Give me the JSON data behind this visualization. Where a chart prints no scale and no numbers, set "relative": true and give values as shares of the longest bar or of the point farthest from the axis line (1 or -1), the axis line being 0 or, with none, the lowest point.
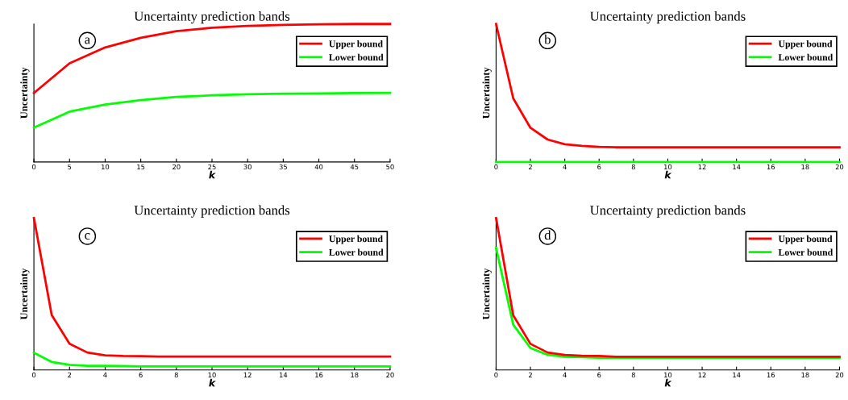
{
  "chart_data": [
    {
      "type": "line",
      "title": "Uncertainty prediction bands",
      "xlabel": "k",
      "ylabel": "Uncertainty",
      "annotations": [
        "a"
      ],
      "relative": true,
      "legend": "top right",
      "xlim": [
        0,
        50
      ],
      "xticks": [
        0,
        5,
        10,
        15,
        20,
        25,
        30,
        35,
        40,
        45,
        50
      ],
      "x": [
        0,
        5,
        10,
        15,
        20,
        25,
        30,
        35,
        40,
        45,
        50
      ],
      "series": [
        {
          "name": "Upper bound",
          "color": "#ff0000",
          "values": [
            0.5,
            0.715,
            0.83,
            0.9,
            0.948,
            0.973,
            0.986,
            0.994,
            0.998,
            1.0,
            1.0
          ]
        },
        {
          "name": "Lower bound",
          "color": "#00ff00",
          "values": [
            0.249,
            0.365,
            0.417,
            0.449,
            0.472,
            0.483,
            0.491,
            0.495,
            0.497,
            0.5,
            0.501
          ]
        }
      ]
    },
    {
      "type": "line",
      "title": "Uncertainty prediction bands",
      "xlabel": "k",
      "ylabel": "Uncertainty",
      "annotations": [
        "b"
      ],
      "relative": true,
      "legend": "top right",
      "xlim": [
        0,
        20
      ],
      "xticks": [
        0,
        2,
        4,
        6,
        8,
        10,
        12,
        14,
        16,
        18,
        20
      ],
      "x": [
        0,
        1,
        2,
        3,
        4,
        5,
        6,
        7,
        8,
        9,
        10,
        11,
        12,
        13,
        14,
        15,
        16,
        17,
        18,
        19,
        20
      ],
      "series": [
        {
          "name": "Upper bound",
          "color": "#ff0000",
          "values": [
            1.0,
            0.461,
            0.248,
            0.163,
            0.129,
            0.117,
            0.11,
            0.106,
            0.106,
            0.106,
            0.106,
            0.106,
            0.106,
            0.106,
            0.106,
            0.106,
            0.106,
            0.106,
            0.106,
            0.106,
            0.106
          ]
        },
        {
          "name": "Lower bound",
          "color": "#00ff00",
          "values": [
            0,
            0,
            0,
            0,
            0,
            0,
            0,
            0,
            0,
            0,
            0,
            0,
            0,
            0,
            0,
            0,
            0,
            0,
            0,
            0,
            0
          ]
        }
      ]
    },
    {
      "type": "line",
      "title": "Uncertainty prediction bands",
      "xlabel": "k",
      "ylabel": "Uncertainty",
      "annotations": [
        "c"
      ],
      "relative": true,
      "legend": "top right",
      "xlim": [
        0,
        20
      ],
      "xticks": [
        0,
        2,
        4,
        6,
        8,
        10,
        12,
        14,
        16,
        18,
        20
      ],
      "x": [
        0,
        1,
        2,
        3,
        4,
        5,
        6,
        7,
        8,
        9,
        10,
        11,
        12,
        13,
        14,
        15,
        16,
        17,
        18,
        19,
        20
      ],
      "series": [
        {
          "name": "Upper bound",
          "color": "#ff0000",
          "values": [
            1.0,
            0.361,
            0.173,
            0.115,
            0.097,
            0.092,
            0.091,
            0.089,
            0.089,
            0.089,
            0.089,
            0.089,
            0.089,
            0.089,
            0.089,
            0.089,
            0.089,
            0.089,
            0.089,
            0.089,
            0.089
          ]
        },
        {
          "name": "Lower bound",
          "color": "#00ff00",
          "values": [
            0.113,
            0.053,
            0.034,
            0.027,
            0.027,
            0.026,
            0.024,
            0.024,
            0.024,
            0.024,
            0.024,
            0.024,
            0.024,
            0.024,
            0.024,
            0.024,
            0.024,
            0.024,
            0.024,
            0.024,
            0.024
          ]
        }
      ]
    },
    {
      "type": "line",
      "title": "Uncertainty prediction bands",
      "xlabel": "k",
      "ylabel": "Uncertainty",
      "annotations": [
        "d"
      ],
      "relative": true,
      "legend": "top right",
      "xlim": [
        0,
        20
      ],
      "xticks": [
        0,
        2,
        4,
        6,
        8,
        10,
        12,
        14,
        16,
        18,
        20
      ],
      "x": [
        0,
        1,
        2,
        3,
        4,
        5,
        6,
        7,
        8,
        9,
        10,
        11,
        12,
        13,
        14,
        15,
        16,
        17,
        18,
        19,
        20
      ],
      "series": [
        {
          "name": "Upper bound",
          "color": "#ff0000",
          "values": [
            1.0,
            0.36,
            0.172,
            0.115,
            0.099,
            0.094,
            0.092,
            0.087,
            0.087,
            0.087,
            0.087,
            0.087,
            0.087,
            0.087,
            0.087,
            0.087,
            0.087,
            0.087,
            0.087,
            0.087,
            0.087
          ]
        },
        {
          "name": "Lower bound",
          "color": "#00ff00",
          "values": [
            0.803,
            0.298,
            0.145,
            0.1,
            0.087,
            0.084,
            0.08,
            0.08,
            0.08,
            0.08,
            0.08,
            0.08,
            0.08,
            0.08,
            0.08,
            0.08,
            0.08,
            0.08,
            0.08,
            0.08,
            0.08
          ]
        }
      ]
    }
  ]
}
